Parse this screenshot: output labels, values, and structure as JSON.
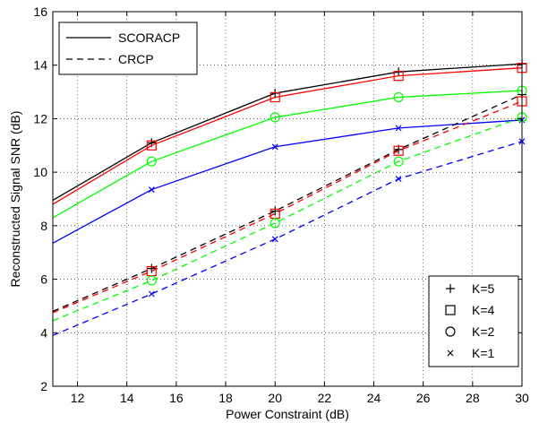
{
  "chart_data": {
    "type": "line",
    "title": "",
    "xlabel": "Power Constraint (dB)",
    "ylabel": "Reconstructed Signal SNR (dB)",
    "xlim": [
      11,
      30
    ],
    "ylim": [
      2,
      16
    ],
    "xticks": [
      12,
      14,
      16,
      18,
      20,
      22,
      24,
      26,
      28,
      30
    ],
    "yticks": [
      2,
      4,
      6,
      8,
      10,
      12,
      14,
      16
    ],
    "grid": true,
    "x": [
      11,
      15,
      20,
      25,
      30
    ],
    "colors": {
      "K=5": "#000000",
      "K=4": "#ff0000",
      "K=2": "#00ff00",
      "K=1": "#0000ff"
    },
    "series": [
      {
        "name": "SCORACP",
        "k": "K=5",
        "marker": "plus",
        "linestyle": "solid",
        "values": [
          8.95,
          11.1,
          12.95,
          13.75,
          14.05
        ]
      },
      {
        "name": "SCORACP",
        "k": "K=4",
        "marker": "square",
        "linestyle": "solid",
        "values": [
          8.8,
          11.0,
          12.8,
          13.6,
          13.9
        ]
      },
      {
        "name": "SCORACP",
        "k": "K=2",
        "marker": "circle",
        "linestyle": "solid",
        "values": [
          8.3,
          10.4,
          12.05,
          12.8,
          13.05
        ]
      },
      {
        "name": "SCORACP",
        "k": "K=1",
        "marker": "x",
        "linestyle": "solid",
        "values": [
          7.35,
          9.35,
          10.95,
          11.65,
          11.95
        ]
      },
      {
        "name": "CRCP",
        "k": "K=5",
        "marker": "plus",
        "linestyle": "dashed",
        "values": [
          4.8,
          6.4,
          8.55,
          10.85,
          12.9
        ]
      },
      {
        "name": "CRCP",
        "k": "K=4",
        "marker": "square",
        "linestyle": "dashed",
        "values": [
          4.75,
          6.3,
          8.45,
          10.8,
          12.65
        ]
      },
      {
        "name": "CRCP",
        "k": "K=2",
        "marker": "circle",
        "linestyle": "dashed",
        "values": [
          4.45,
          5.95,
          8.1,
          10.4,
          12.05
        ]
      },
      {
        "name": "CRCP",
        "k": "K=1",
        "marker": "x",
        "linestyle": "dashed",
        "values": [
          3.9,
          5.45,
          7.5,
          9.75,
          11.15
        ]
      }
    ],
    "legend_lines": [
      {
        "label": "SCORACP",
        "linestyle": "solid"
      },
      {
        "label": "CRCP",
        "linestyle": "dashed"
      }
    ],
    "legend_markers": [
      {
        "label": "K=5",
        "marker": "plus"
      },
      {
        "label": "K=4",
        "marker": "square"
      },
      {
        "label": "K=2",
        "marker": "circle"
      },
      {
        "label": "K=1",
        "marker": "x"
      }
    ],
    "legend_lines_placement": "top-left",
    "legend_markers_placement": "bottom-right"
  }
}
